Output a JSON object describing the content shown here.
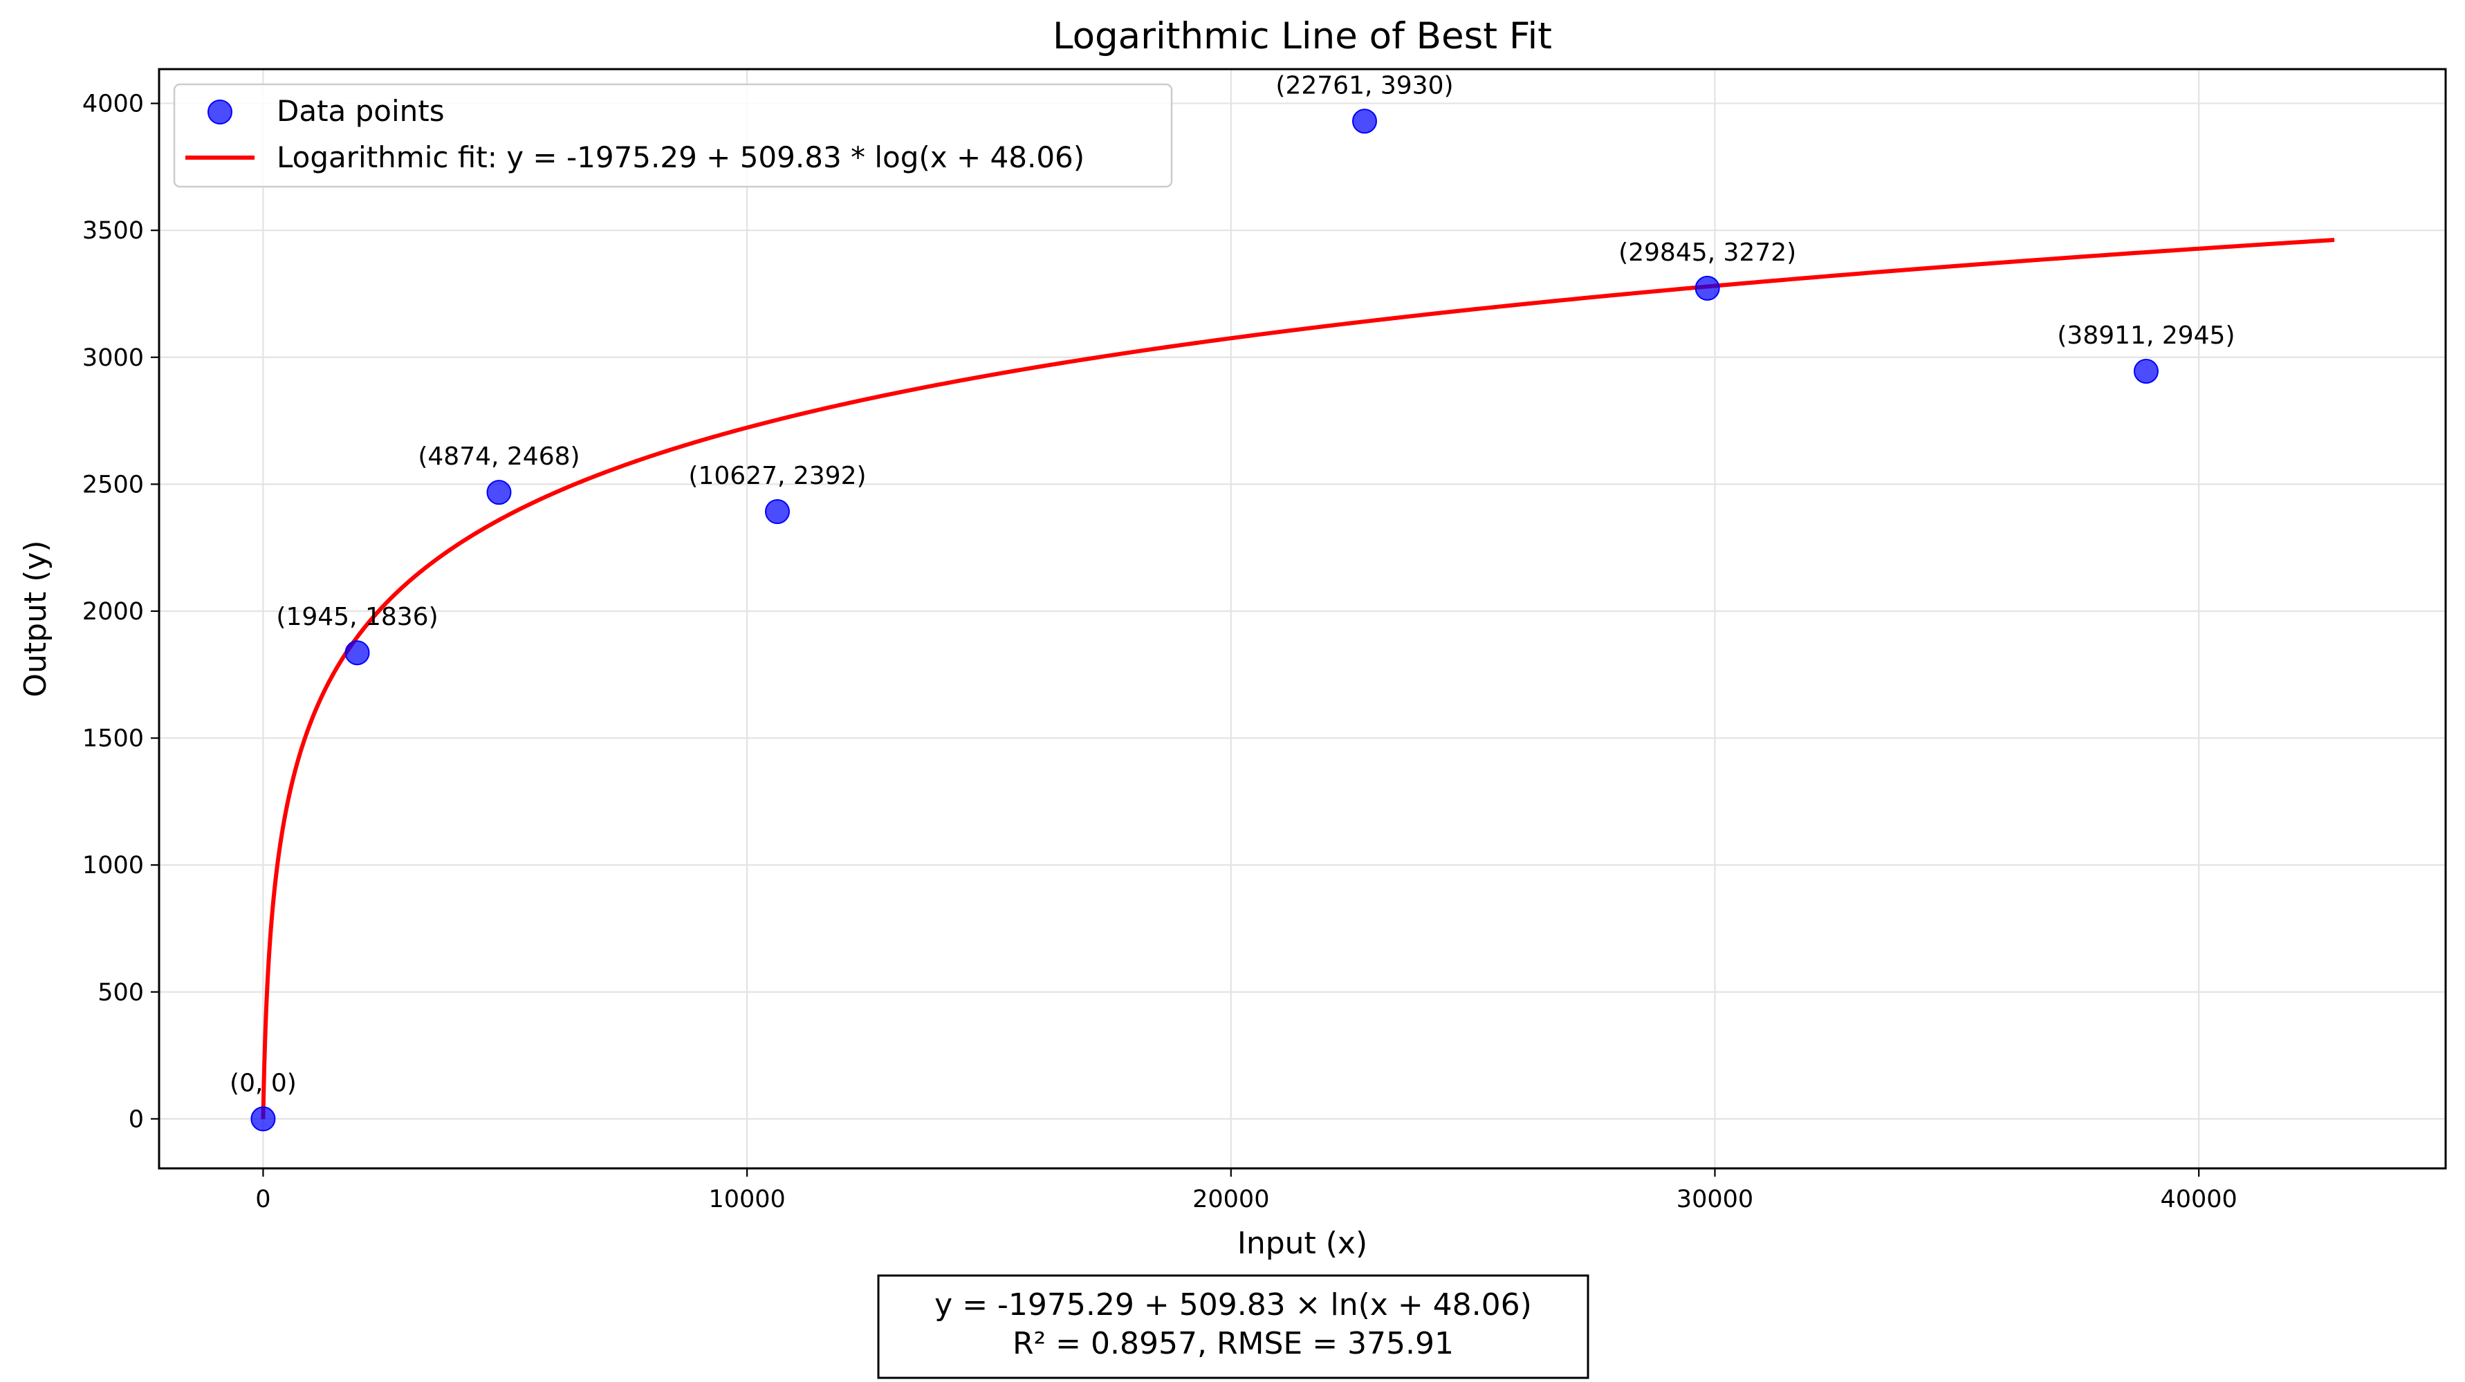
{
  "chart_data": {
    "type": "scatter",
    "title": "Logarithmic Line of Best Fit",
    "xlabel": "Input (x)",
    "ylabel": "Output (y)",
    "xlim": [
      -2150,
      45100
    ],
    "ylim": [
      -195,
      4135
    ],
    "x_ticks": [
      0,
      10000,
      20000,
      30000,
      40000
    ],
    "y_ticks": [
      0,
      500,
      1000,
      1500,
      2000,
      2500,
      3000,
      3500,
      4000
    ],
    "grid": true,
    "legend_position": "top-left",
    "colors": {
      "points": "#0000ff",
      "fit_line": "#ff0000"
    },
    "series": [
      {
        "name": "Data points",
        "type": "scatter",
        "points": [
          {
            "x": 0,
            "y": 0,
            "label": "(0, 0)"
          },
          {
            "x": 1945,
            "y": 1836,
            "label": "(1945, 1836)"
          },
          {
            "x": 4874,
            "y": 2468,
            "label": "(4874, 2468)"
          },
          {
            "x": 10627,
            "y": 2392,
            "label": "(10627, 2392)"
          },
          {
            "x": 22761,
            "y": 3930,
            "label": "(22761, 3930)"
          },
          {
            "x": 29845,
            "y": 3272,
            "label": "(29845, 3272)"
          },
          {
            "x": 38911,
            "y": 2945,
            "label": "(38911, 2945)"
          }
        ]
      },
      {
        "name": "Logarithmic fit: y = -1975.29 + 509.83 * log(x + 48.06)",
        "type": "line",
        "formula": {
          "a": -1975.29,
          "b": 509.83,
          "c": 48.06
        },
        "x_range": [
          0,
          42800
        ]
      }
    ],
    "annotation": {
      "line1": "y = -1975.29 + 509.83 × ln(x + 48.06)",
      "line2": "R² = 0.8957, RMSE = 375.91"
    }
  }
}
